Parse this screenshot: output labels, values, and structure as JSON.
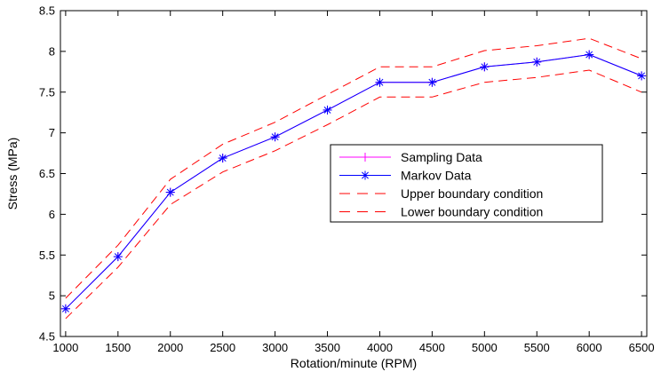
{
  "chart_data": {
    "type": "line",
    "title": "",
    "xlabel": "Rotation/minute (RPM)",
    "ylabel": "Stress (MPa)",
    "xlim": [
      950,
      6550
    ],
    "ylim": [
      4.5,
      8.5
    ],
    "x_ticks": [
      1000,
      1500,
      2000,
      2500,
      3000,
      3500,
      4000,
      4500,
      5000,
      5500,
      6000,
      6500
    ],
    "y_ticks": [
      4.5,
      5,
      5.5,
      6,
      6.5,
      7,
      7.5,
      8,
      8.5
    ],
    "x": [
      1000,
      1500,
      2000,
      2500,
      3000,
      3500,
      4000,
      4500,
      5000,
      5500,
      6000,
      6500
    ],
    "grid": false,
    "legend_position": "center-right",
    "series": [
      {
        "name": "Sampling Data",
        "color": "#ff00ff",
        "marker": "plus",
        "line_style": "solid",
        "values": [
          4.84,
          5.48,
          6.27,
          6.69,
          6.95,
          7.28,
          7.62,
          7.62,
          7.81,
          7.87,
          7.96,
          7.7
        ]
      },
      {
        "name": "Markov Data",
        "color": "#0000ff",
        "marker": "star",
        "line_style": "solid",
        "values": [
          4.84,
          5.48,
          6.27,
          6.69,
          6.95,
          7.28,
          7.62,
          7.62,
          7.81,
          7.87,
          7.96,
          7.7
        ]
      },
      {
        "name": "Upper boundary condition",
        "color": "#ff0000",
        "marker": "none",
        "line_style": "dashed",
        "values": [
          4.97,
          5.62,
          6.43,
          6.86,
          7.13,
          7.47,
          7.81,
          7.81,
          8.01,
          8.07,
          8.16,
          7.91
        ]
      },
      {
        "name": "Lower boundary condition",
        "color": "#ff0000",
        "marker": "none",
        "line_style": "dashed",
        "values": [
          4.72,
          5.35,
          6.12,
          6.52,
          6.78,
          7.1,
          7.44,
          7.44,
          7.62,
          7.68,
          7.77,
          7.5
        ]
      }
    ]
  }
}
